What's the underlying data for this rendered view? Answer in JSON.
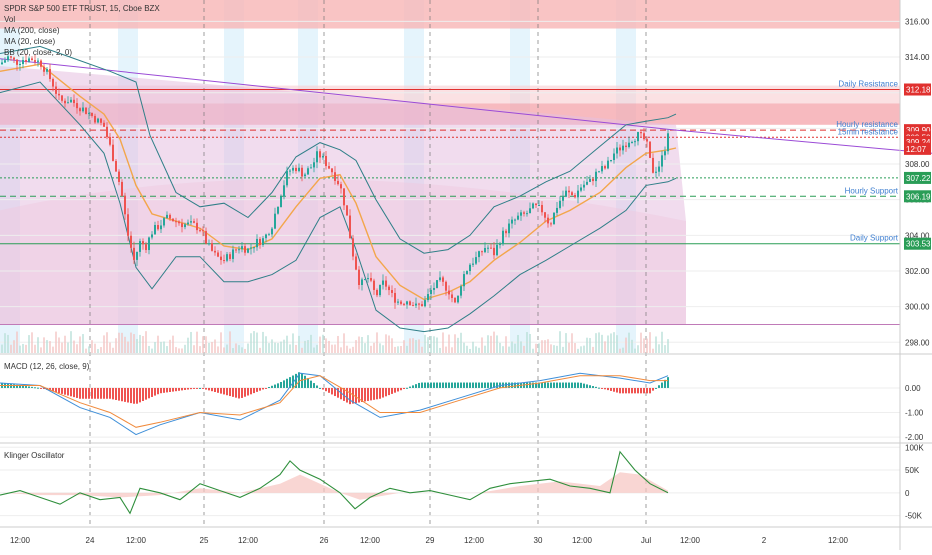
{
  "chart_data": [
    {
      "type": "candlestick",
      "title": "SPDR S&P 500 ETF TRUST, 15, Cboe BZX",
      "volume_label": "Vol",
      "indicators": [
        {
          "name": "MA (200, close)",
          "color": "#9b4bd6"
        },
        {
          "name": "MA (20, close)",
          "color": "#f3a64b"
        },
        {
          "name": "BB (20, close, 2, 0)",
          "color": "#2f7f88"
        }
      ],
      "ylim": [
        297.4,
        317.2
      ],
      "y_ticks": [
        "316.00",
        "314.00",
        "312.00",
        "310.00",
        "308.00",
        "306.00",
        "304.00",
        "302.00",
        "300.00",
        "298.00"
      ],
      "y_tick_values": [
        316,
        314,
        312,
        310,
        308,
        306,
        304,
        302,
        300,
        298
      ],
      "x_ticks": [
        "12:00",
        "24",
        "12:00",
        "25",
        "12:00",
        "26",
        "12:00",
        "29",
        "12:00",
        "30",
        "12:00",
        "Jul",
        "12:00",
        "2",
        "12:00"
      ],
      "close_path": [
        [
          0,
          313.6
        ],
        [
          8,
          314.0
        ],
        [
          16,
          313.7
        ],
        [
          24,
          313.9
        ],
        [
          34,
          313.9
        ],
        [
          42,
          313.6
        ],
        [
          52,
          312.6
        ],
        [
          60,
          311.5
        ],
        [
          70,
          311.6
        ],
        [
          80,
          311.2
        ],
        [
          88,
          310.9
        ],
        [
          96,
          310.5
        ],
        [
          104,
          310.1
        ],
        [
          112,
          308.6
        ],
        [
          118,
          307.3
        ],
        [
          122,
          306.2
        ],
        [
          128,
          304.0
        ],
        [
          134,
          302.6
        ],
        [
          140,
          303.6
        ],
        [
          146,
          303.4
        ],
        [
          152,
          304.2
        ],
        [
          160,
          304.6
        ],
        [
          168,
          305.0
        ],
        [
          176,
          304.8
        ],
        [
          184,
          304.6
        ],
        [
          192,
          304.6
        ],
        [
          200,
          304.4
        ],
        [
          208,
          303.4
        ],
        [
          216,
          302.8
        ],
        [
          224,
          302.6
        ],
        [
          232,
          303.0
        ],
        [
          240,
          303.4
        ],
        [
          248,
          303.2
        ],
        [
          256,
          303.6
        ],
        [
          264,
          303.8
        ],
        [
          272,
          304.6
        ],
        [
          280,
          306.2
        ],
        [
          288,
          307.6
        ],
        [
          296,
          307.8
        ],
        [
          304,
          307.4
        ],
        [
          312,
          307.9
        ],
        [
          318,
          308.6
        ],
        [
          324,
          308.2
        ],
        [
          332,
          307.6
        ],
        [
          340,
          306.8
        ],
        [
          346,
          305.4
        ],
        [
          352,
          303.2
        ],
        [
          360,
          301.2
        ],
        [
          368,
          301.6
        ],
        [
          376,
          300.6
        ],
        [
          384,
          301.4
        ],
        [
          392,
          300.6
        ],
        [
          400,
          300.2
        ],
        [
          408,
          300.4
        ],
        [
          416,
          300.0
        ],
        [
          424,
          300.2
        ],
        [
          432,
          301.0
        ],
        [
          440,
          301.4
        ],
        [
          448,
          301.0
        ],
        [
          456,
          300.0
        ],
        [
          462,
          301.6
        ],
        [
          470,
          302.4
        ],
        [
          478,
          302.8
        ],
        [
          486,
          303.4
        ],
        [
          494,
          303.0
        ],
        [
          502,
          304.0
        ],
        [
          510,
          304.6
        ],
        [
          518,
          305.0
        ],
        [
          526,
          305.2
        ],
        [
          534,
          305.6
        ],
        [
          542,
          305.4
        ],
        [
          550,
          304.6
        ],
        [
          558,
          305.8
        ],
        [
          566,
          306.4
        ],
        [
          574,
          306.2
        ],
        [
          582,
          306.8
        ],
        [
          590,
          307.0
        ],
        [
          598,
          307.6
        ],
        [
          606,
          307.8
        ],
        [
          614,
          308.6
        ],
        [
          622,
          309.0
        ],
        [
          630,
          309.4
        ],
        [
          638,
          309.6
        ],
        [
          646,
          309.3
        ],
        [
          652,
          307.6
        ],
        [
          658,
          307.8
        ],
        [
          664,
          308.6
        ],
        [
          668,
          309.9
        ]
      ],
      "ma20_path": [
        [
          0,
          313.2
        ],
        [
          40,
          313.6
        ],
        [
          80,
          311.8
        ],
        [
          104,
          310.8
        ],
        [
          120,
          309.4
        ],
        [
          136,
          306.8
        ],
        [
          152,
          305.2
        ],
        [
          176,
          304.8
        ],
        [
          200,
          304.4
        ],
        [
          224,
          303.4
        ],
        [
          248,
          303.2
        ],
        [
          272,
          303.8
        ],
        [
          296,
          305.6
        ],
        [
          320,
          307.2
        ],
        [
          340,
          307.4
        ],
        [
          356,
          305.8
        ],
        [
          376,
          302.8
        ],
        [
          400,
          301.2
        ],
        [
          424,
          300.4
        ],
        [
          448,
          300.8
        ],
        [
          470,
          301.4
        ],
        [
          494,
          302.6
        ],
        [
          520,
          303.6
        ],
        [
          546,
          304.8
        ],
        [
          570,
          305.4
        ],
        [
          600,
          306.4
        ],
        [
          626,
          307.8
        ],
        [
          646,
          308.6
        ],
        [
          668,
          308.8
        ],
        [
          676,
          308.9
        ]
      ],
      "ma200_path": [
        [
          0,
          313.9
        ],
        [
          676,
          309.9
        ],
        [
          932,
          308.6
        ]
      ],
      "bb_upper_path": [
        [
          0,
          314.2
        ],
        [
          40,
          314.6
        ],
        [
          80,
          313.8
        ],
        [
          110,
          313.2
        ],
        [
          136,
          312.6
        ],
        [
          150,
          309.6
        ],
        [
          176,
          306.4
        ],
        [
          200,
          305.6
        ],
        [
          224,
          305.8
        ],
        [
          248,
          305.0
        ],
        [
          272,
          306.4
        ],
        [
          296,
          308.4
        ],
        [
          320,
          309.2
        ],
        [
          340,
          308.8
        ],
        [
          356,
          308.2
        ],
        [
          376,
          306.0
        ],
        [
          400,
          303.8
        ],
        [
          424,
          303.0
        ],
        [
          448,
          303.2
        ],
        [
          470,
          304.0
        ],
        [
          494,
          305.6
        ],
        [
          520,
          306.2
        ],
        [
          546,
          307.0
        ],
        [
          570,
          307.6
        ],
        [
          600,
          309.0
        ],
        [
          626,
          310.2
        ],
        [
          646,
          310.4
        ],
        [
          668,
          310.6
        ],
        [
          676,
          310.8
        ]
      ],
      "bb_lower_path": [
        [
          0,
          312.0
        ],
        [
          40,
          312.6
        ],
        [
          80,
          310.2
        ],
        [
          104,
          308.6
        ],
        [
          120,
          305.8
        ],
        [
          136,
          302.2
        ],
        [
          152,
          301.0
        ],
        [
          176,
          302.8
        ],
        [
          200,
          302.8
        ],
        [
          224,
          301.4
        ],
        [
          248,
          301.4
        ],
        [
          272,
          301.8
        ],
        [
          296,
          302.6
        ],
        [
          320,
          305.0
        ],
        [
          340,
          305.6
        ],
        [
          356,
          303.2
        ],
        [
          376,
          299.8
        ],
        [
          400,
          298.8
        ],
        [
          424,
          298.6
        ],
        [
          448,
          298.8
        ],
        [
          470,
          299.6
        ],
        [
          494,
          300.6
        ],
        [
          520,
          301.8
        ],
        [
          546,
          302.6
        ],
        [
          570,
          303.4
        ],
        [
          600,
          304.4
        ],
        [
          626,
          305.4
        ],
        [
          646,
          306.8
        ],
        [
          668,
          307.0
        ],
        [
          676,
          307.2
        ]
      ],
      "levels": [
        {
          "label": "Daily Resistance",
          "value": 312.18,
          "tag": "312.18",
          "color": "#e0312f",
          "style": "solid"
        },
        {
          "label": "Hourly resistance",
          "value": 309.9,
          "tag": "309.90",
          "color": "#e0312f",
          "style": "dashed"
        },
        {
          "label": "15min resistance",
          "value": 309.5,
          "tag": "309.50",
          "color": "#e0312f",
          "style": "dotted"
        },
        {
          "label": "",
          "value": 309.24,
          "tag": "309.24",
          "color": "#e0312f",
          "style": "none"
        },
        {
          "label": "",
          "value": 308.85,
          "tag": "12:07",
          "color": "#e0312f",
          "style": "none"
        },
        {
          "label": "",
          "value": 307.22,
          "tag": "307.22",
          "color": "#2a9d57",
          "style": "dotted"
        },
        {
          "label": "Hourly Support",
          "value": 306.19,
          "tag": "306.19",
          "color": "#2a9d57",
          "style": "dashed"
        },
        {
          "label": "Daily Support",
          "value": 303.53,
          "tag": "303.53",
          "color": "#2a9d57",
          "style": "solid"
        }
      ]
    },
    {
      "type": "line",
      "title": "MACD (12, 26, close, 9)",
      "ylim": [
        -2.2,
        1.3
      ],
      "y_ticks": [
        "0.00",
        "-1.00",
        "-2.00"
      ],
      "y_tick_values": [
        0,
        -1,
        -2
      ],
      "series": [
        {
          "color": "#3f8fd8",
          "values": [
            [
              0,
              0.2
            ],
            [
              40,
              0.1
            ],
            [
              80,
              -0.8
            ],
            [
              110,
              -1.2
            ],
            [
              136,
              -1.9
            ],
            [
              160,
              -1.5
            ],
            [
              200,
              -1.0
            ],
            [
              240,
              -1.3
            ],
            [
              280,
              -0.5
            ],
            [
              300,
              0.6
            ],
            [
              320,
              0.5
            ],
            [
              350,
              -0.5
            ],
            [
              380,
              -1.2
            ],
            [
              420,
              -0.9
            ],
            [
              460,
              -0.4
            ],
            [
              500,
              0.1
            ],
            [
              540,
              0.3
            ],
            [
              580,
              0.6
            ],
            [
              620,
              0.4
            ],
            [
              650,
              0.2
            ],
            [
              668,
              0.5
            ]
          ]
        },
        {
          "color": "#f08a3c",
          "values": [
            [
              0,
              0.1
            ],
            [
              40,
              0.1
            ],
            [
              80,
              -0.6
            ],
            [
              110,
              -1.0
            ],
            [
              136,
              -1.6
            ],
            [
              160,
              -1.4
            ],
            [
              200,
              -1.0
            ],
            [
              240,
              -1.1
            ],
            [
              280,
              -0.6
            ],
            [
              300,
              0.3
            ],
            [
              320,
              0.5
            ],
            [
              350,
              -0.2
            ],
            [
              380,
              -1.0
            ],
            [
              420,
              -1.0
            ],
            [
              460,
              -0.5
            ],
            [
              500,
              0.0
            ],
            [
              540,
              0.2
            ],
            [
              580,
              0.5
            ],
            [
              620,
              0.5
            ],
            [
              650,
              0.3
            ],
            [
              668,
              0.3
            ]
          ]
        }
      ]
    },
    {
      "type": "line",
      "title": "Klinger Oscillator",
      "ylim": [
        -75000,
        105000
      ],
      "y_ticks": [
        "100K",
        "50K",
        "0",
        "-50K"
      ],
      "y_tick_values": [
        100000,
        50000,
        0,
        -50000
      ],
      "series": [
        {
          "color": "#2f8f3c",
          "values": [
            [
              0,
              -5000
            ],
            [
              20,
              5000
            ],
            [
              40,
              -10000
            ],
            [
              60,
              -25000
            ],
            [
              80,
              0
            ],
            [
              100,
              -15000
            ],
            [
              120,
              -10000
            ],
            [
              130,
              -45000
            ],
            [
              140,
              10000
            ],
            [
              160,
              0
            ],
            [
              180,
              -15000
            ],
            [
              200,
              20000
            ],
            [
              220,
              5000
            ],
            [
              240,
              -10000
            ],
            [
              260,
              10000
            ],
            [
              280,
              40000
            ],
            [
              290,
              70000
            ],
            [
              300,
              50000
            ],
            [
              320,
              30000
            ],
            [
              340,
              0
            ],
            [
              355,
              -35000
            ],
            [
              370,
              -10000
            ],
            [
              390,
              10000
            ],
            [
              410,
              0
            ],
            [
              430,
              5000
            ],
            [
              450,
              -5000
            ],
            [
              470,
              -15000
            ],
            [
              490,
              10000
            ],
            [
              510,
              20000
            ],
            [
              530,
              25000
            ],
            [
              550,
              30000
            ],
            [
              570,
              15000
            ],
            [
              590,
              10000
            ],
            [
              610,
              0
            ],
            [
              620,
              90000
            ],
            [
              635,
              50000
            ],
            [
              650,
              20000
            ],
            [
              668,
              0
            ]
          ]
        },
        {
          "color": "#f4a6a0",
          "values": [
            [
              0,
              0
            ],
            [
              40,
              -5000
            ],
            [
              80,
              -5000
            ],
            [
              120,
              -10000
            ],
            [
              160,
              -5000
            ],
            [
              200,
              10000
            ],
            [
              240,
              0
            ],
            [
              280,
              20000
            ],
            [
              300,
              40000
            ],
            [
              320,
              20000
            ],
            [
              340,
              0
            ],
            [
              360,
              -15000
            ],
            [
              400,
              0
            ],
            [
              440,
              0
            ],
            [
              480,
              0
            ],
            [
              520,
              15000
            ],
            [
              560,
              25000
            ],
            [
              600,
              15000
            ],
            [
              620,
              45000
            ],
            [
              640,
              40000
            ],
            [
              668,
              5000
            ]
          ]
        }
      ]
    }
  ]
}
